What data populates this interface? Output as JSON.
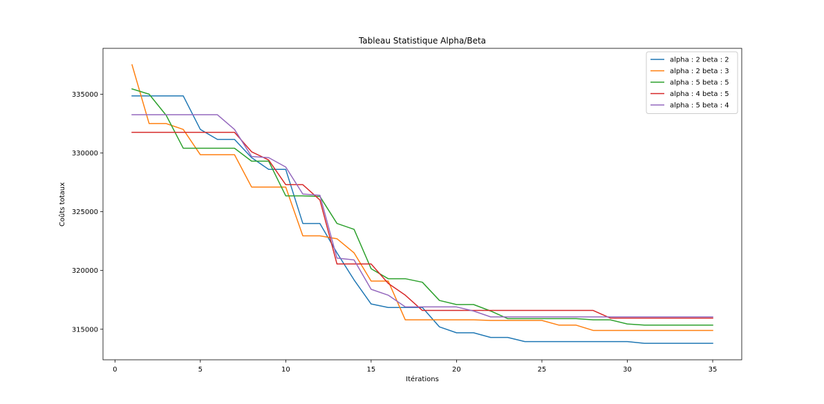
{
  "chart_data": {
    "type": "line",
    "title": "Tableau Statistique Alpha/Beta",
    "xlabel": "Itérations",
    "ylabel": "Coûts totaux",
    "xlim": [
      -0.7,
      36.7
    ],
    "ylim": [
      312400,
      338900
    ],
    "xticks": [
      0,
      5,
      10,
      15,
      20,
      25,
      30,
      35
    ],
    "xtick_labels": [
      "0",
      "5",
      "10",
      "15",
      "20",
      "25",
      "30",
      "35"
    ],
    "yticks": [
      315000,
      320000,
      325000,
      330000,
      335000
    ],
    "ytick_labels": [
      "315000",
      "320000",
      "325000",
      "330000",
      "335000"
    ],
    "grid": false,
    "legend_position": "top-right",
    "x": [
      1,
      2,
      3,
      4,
      5,
      6,
      7,
      8,
      9,
      10,
      11,
      12,
      13,
      14,
      15,
      16,
      17,
      18,
      19,
      20,
      21,
      22,
      23,
      24,
      25,
      26,
      27,
      28,
      29,
      30,
      31,
      32,
      33,
      34,
      35
    ],
    "series": [
      {
        "name": "alpha : 2 beta : 2",
        "color": "#1f77b4",
        "values": [
          334850,
          334850,
          334850,
          334850,
          332000,
          331150,
          331150,
          329600,
          328600,
          328600,
          324000,
          324000,
          321500,
          319200,
          317150,
          316850,
          316850,
          316850,
          315200,
          314700,
          314700,
          314300,
          314300,
          313950,
          313950,
          313950,
          313950,
          313950,
          313950,
          313950,
          313800,
          313800,
          313800,
          313800,
          313800
        ]
      },
      {
        "name": "alpha : 2 beta : 3",
        "color": "#ff7f0e",
        "values": [
          337500,
          332500,
          332500,
          332000,
          329850,
          329850,
          329850,
          327100,
          327100,
          327100,
          322950,
          322950,
          322700,
          321500,
          319100,
          319100,
          315800,
          315800,
          315800,
          315800,
          315800,
          315750,
          315750,
          315750,
          315750,
          315350,
          315350,
          314900,
          314900,
          314900,
          314900,
          314900,
          314900,
          314900,
          314900
        ]
      },
      {
        "name": "alpha : 5 beta : 5",
        "color": "#2ca02c",
        "values": [
          335450,
          335000,
          333200,
          330400,
          330400,
          330400,
          330400,
          329300,
          329300,
          326350,
          326350,
          326300,
          324000,
          323500,
          320150,
          319300,
          319300,
          319000,
          317450,
          317100,
          317100,
          316550,
          315900,
          315900,
          315900,
          315900,
          315900,
          315800,
          315800,
          315450,
          315350,
          315350,
          315350,
          315350,
          315350
        ]
      },
      {
        "name": "alpha : 4 beta : 5",
        "color": "#d62728",
        "values": [
          331750,
          331750,
          331750,
          331750,
          331750,
          331750,
          331750,
          330100,
          329400,
          327300,
          327300,
          326000,
          320550,
          320550,
          320550,
          318900,
          317900,
          316600,
          316600,
          316600,
          316600,
          316600,
          316600,
          316600,
          316600,
          316600,
          316600,
          316600,
          315950,
          315950,
          315950,
          315950,
          315950,
          315950,
          315950
        ]
      },
      {
        "name": "alpha : 5 beta : 4",
        "color": "#9467bd",
        "values": [
          333250,
          333250,
          333250,
          333250,
          333250,
          333250,
          332000,
          329700,
          329600,
          328800,
          326500,
          326400,
          321050,
          320900,
          318400,
          317900,
          316900,
          316900,
          316900,
          316900,
          316550,
          316050,
          316050,
          316050,
          316050,
          316050,
          316050,
          316050,
          316050,
          316050,
          316050,
          316050,
          316050,
          316050,
          316050
        ]
      }
    ]
  }
}
